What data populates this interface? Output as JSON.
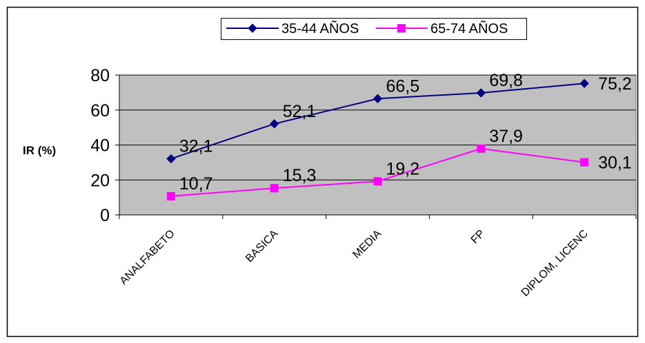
{
  "chart_data": {
    "type": "line",
    "ylabel": "IR (%)",
    "xlabel": "",
    "ylim": [
      0,
      80
    ],
    "yticks": [
      0,
      20,
      40,
      60,
      80
    ],
    "grid": true,
    "plot_background": "#C0C0C0",
    "legend_position": "top",
    "categories": [
      "ANALFABETO",
      "BASICA",
      "MEDIA",
      "FP",
      "DIPLOM, LICENC"
    ],
    "series": [
      {
        "name": "35-44 AÑOS",
        "color": "#000080",
        "marker": "diamond",
        "values": [
          32.1,
          52.1,
          66.5,
          69.8,
          75.2
        ],
        "labels": [
          "32,1",
          "52,1",
          "66,5",
          "69,8",
          "75,2"
        ]
      },
      {
        "name": "65-74 AÑOS",
        "color": "#FF00FF",
        "marker": "square",
        "values": [
          10.7,
          15.3,
          19.2,
          37.9,
          30.1
        ],
        "labels": [
          "10,7",
          "15,3",
          "19,2",
          "37,9",
          "30,1"
        ]
      }
    ]
  }
}
